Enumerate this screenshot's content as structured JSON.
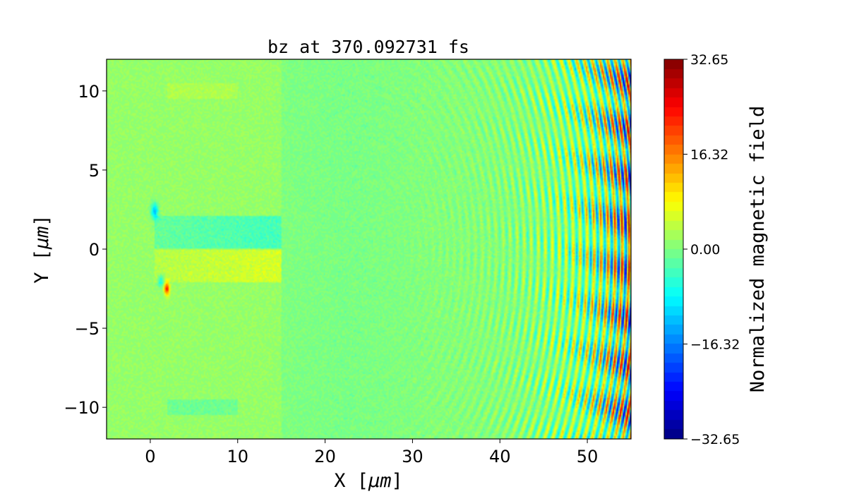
{
  "chart_data": {
    "type": "heatmap",
    "title": "bz at 370.092731 fs",
    "xlabel": "X [$\\mu m$]",
    "xlabel_display": [
      "X [",
      "μm",
      "]"
    ],
    "ylabel_display": [
      "Y [",
      "μm",
      "]"
    ],
    "xlim": [
      -5,
      55
    ],
    "ylim": [
      -12,
      12
    ],
    "xticks": [
      0,
      10,
      20,
      30,
      40,
      50
    ],
    "yticks": [
      -10,
      -5,
      0,
      5,
      10
    ],
    "xtick_labels": [
      "0",
      "10",
      "20",
      "30",
      "40",
      "50"
    ],
    "ytick_labels": [
      "−10",
      "−5",
      "0",
      "5",
      "10"
    ],
    "colormap": "jet",
    "colormap_levels": 40,
    "vmin": -32.65,
    "vmax": 32.65,
    "colorbar": {
      "label": "Normalized magnetic field",
      "ticks": [
        32.65,
        16.32,
        0.0,
        -16.32,
        -32.65
      ],
      "tick_labels": [
        "32.65",
        "16.32",
        "0.00",
        "−16.32",
        "−32.65"
      ]
    },
    "grid": false
  }
}
